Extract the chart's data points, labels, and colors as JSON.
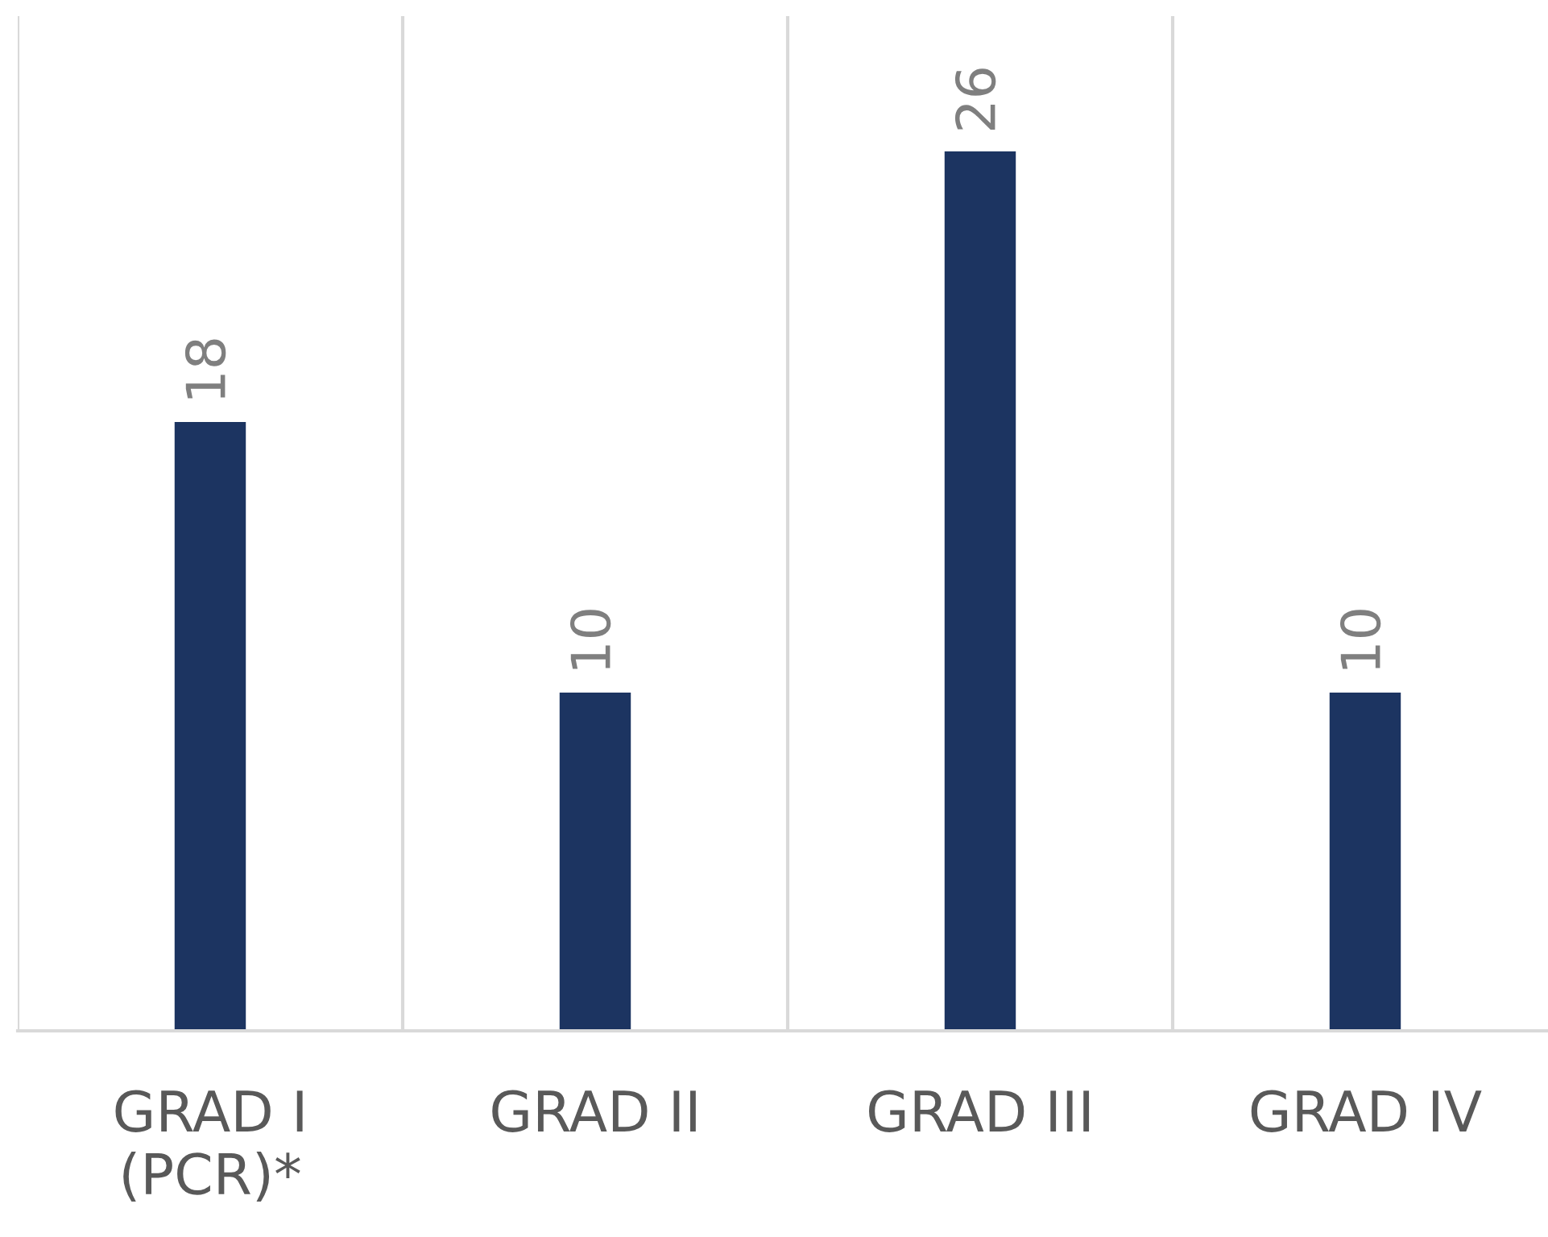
{
  "chart_data": {
    "type": "bar",
    "categories": [
      "GRAD I (PCR)*",
      "GRAD II",
      "GRAD III",
      "GRAD IV"
    ],
    "values": [
      18,
      10,
      26,
      10
    ],
    "color": "#1c3461",
    "ylim": [
      0,
      30
    ],
    "tick_labels": "x",
    "data_labels": true,
    "grid": "x",
    "legend": false
  }
}
